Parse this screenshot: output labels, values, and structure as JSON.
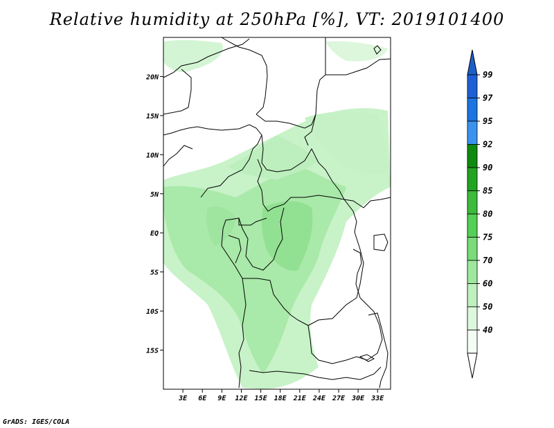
{
  "title": "Relative humidity at 250hPa [%], VT: 2019101400",
  "credit": "GrADS: IGES/COLA",
  "map": {
    "lat_labels": [
      "20N",
      "15N",
      "10N",
      "5N",
      "EQ",
      "5S",
      "10S",
      "15S"
    ],
    "lat_values": [
      20,
      15,
      10,
      5,
      0,
      -5,
      -10,
      -15
    ],
    "lon_labels": [
      "3E",
      "6E",
      "9E",
      "12E",
      "15E",
      "18E",
      "21E",
      "24E",
      "27E",
      "30E",
      "33E"
    ],
    "lon_values": [
      3,
      6,
      9,
      12,
      15,
      18,
      21,
      24,
      27,
      30,
      33
    ],
    "lon_range": [
      0,
      35
    ],
    "lat_range": [
      -20,
      25
    ]
  },
  "colorbar": {
    "levels": [
      "99",
      "97",
      "95",
      "92",
      "90",
      "85",
      "80",
      "75",
      "70",
      "60",
      "50",
      "40"
    ],
    "colors": [
      "#1f5fd6",
      "#1c74e0",
      "#3c93ee",
      "#0f8a0f",
      "#22a322",
      "#3cbb3c",
      "#55cf55",
      "#79dc79",
      "#9ee89e",
      "#bef1be",
      "#ddf8dd",
      "#f4fdf4"
    ],
    "top_color": "#1c5fc9",
    "bottom_color": "#ffffff"
  }
}
